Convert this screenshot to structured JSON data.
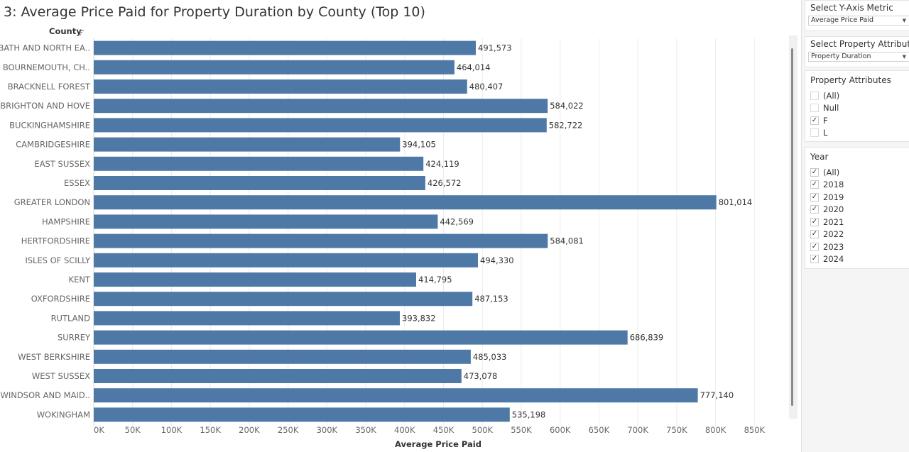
{
  "title": "3: Average Price Paid for Property Duration by County (Top 10)",
  "chart_data": {
    "type": "bar",
    "orientation": "horizontal",
    "title": "3: Average Price Paid for Property Duration by County (Top 10)",
    "category_header": "County",
    "xlabel": "Average Price Paid",
    "xlim": [
      0,
      870000
    ],
    "x_ticks": [
      "0K",
      "50K",
      "100K",
      "150K",
      "200K",
      "250K",
      "300K",
      "350K",
      "400K",
      "450K",
      "500K",
      "550K",
      "600K",
      "650K",
      "700K",
      "750K",
      "800K",
      "850K"
    ],
    "grid": true,
    "bar_color": "#4e79a7",
    "categories": [
      "BATH AND NORTH EA..",
      "BOURNEMOUTH, CH..",
      "BRACKNELL FOREST",
      "BRIGHTON AND HOVE",
      "BUCKINGHAMSHIRE",
      "CAMBRIDGESHIRE",
      "EAST SUSSEX",
      "ESSEX",
      "GREATER LONDON",
      "HAMPSHIRE",
      "HERTFORDSHIRE",
      "ISLES OF SCILLY",
      "KENT",
      "OXFORDSHIRE",
      "RUTLAND",
      "SURREY",
      "WEST BERKSHIRE",
      "WEST SUSSEX",
      "WINDSOR AND MAID..",
      "WOKINGHAM"
    ],
    "values": [
      491573,
      464014,
      480407,
      584022,
      582722,
      394105,
      424119,
      426572,
      801014,
      442569,
      584081,
      494330,
      414795,
      487153,
      393832,
      686839,
      485033,
      473078,
      777140,
      535198
    ],
    "value_labels": [
      "491,573",
      "464,014",
      "480,407",
      "584,022",
      "582,722",
      "394,105",
      "424,119",
      "426,572",
      "801,014",
      "442,569",
      "584,081",
      "494,330",
      "414,795",
      "487,153",
      "393,832",
      "686,839",
      "485,033",
      "473,078",
      "777,140",
      "535,198"
    ]
  },
  "sidebar": {
    "y_metric": {
      "title": "Select Y-Axis Metric",
      "value": "Average Price Paid"
    },
    "property_attribute": {
      "title": "Select Property Attribute",
      "value": "Property Duration"
    },
    "property_attributes": {
      "title": "Property Attributes",
      "items": [
        {
          "label": "(All)",
          "checked": false
        },
        {
          "label": "Null",
          "checked": false
        },
        {
          "label": "F",
          "checked": true
        },
        {
          "label": "L",
          "checked": false
        }
      ]
    },
    "year": {
      "title": "Year",
      "items": [
        {
          "label": "(All)",
          "checked": true
        },
        {
          "label": "2018",
          "checked": true
        },
        {
          "label": "2019",
          "checked": true
        },
        {
          "label": "2020",
          "checked": true
        },
        {
          "label": "2021",
          "checked": true
        },
        {
          "label": "2022",
          "checked": true
        },
        {
          "label": "2023",
          "checked": true
        },
        {
          "label": "2024",
          "checked": true
        }
      ]
    }
  }
}
